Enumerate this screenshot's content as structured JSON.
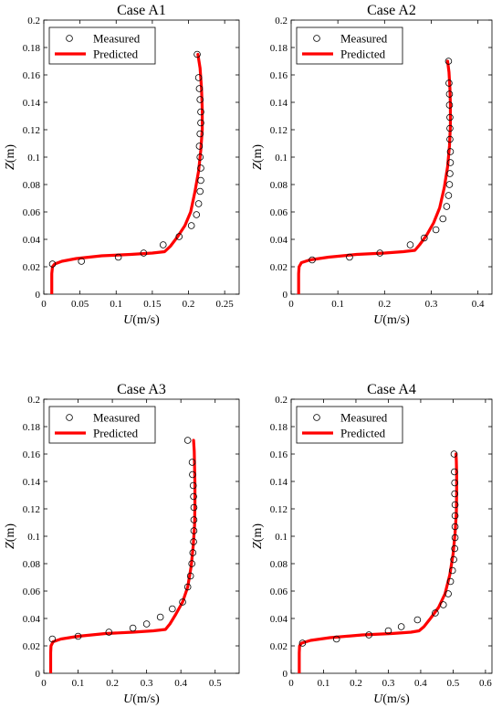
{
  "chart_data": [
    {
      "type": "line",
      "title": "Case A1",
      "xlabel_var": "U",
      "xlabel_unit": "(m/s)",
      "ylabel_var": "Z",
      "ylabel_unit": "(m)",
      "xlim": [
        0,
        0.27
      ],
      "ylim": [
        0,
        0.2
      ],
      "xticks": [
        0,
        0.05,
        0.1,
        0.15,
        0.2,
        0.25
      ],
      "xtick_labels": [
        "0",
        "0.05",
        "0.1",
        "0.15",
        "0.2",
        "0.25"
      ],
      "yticks": [
        0,
        0.02,
        0.04,
        0.06,
        0.08,
        0.1,
        0.12,
        0.14,
        0.16,
        0.18,
        0.2
      ],
      "ytick_labels": [
        "0",
        "0.02",
        "0.04",
        "0.06",
        "0.08",
        "0.1",
        "0.12",
        "0.14",
        "0.16",
        "0.18",
        "0.2"
      ],
      "legend": "top-left",
      "grid": false,
      "series": [
        {
          "name": "Measured",
          "kind": "marker",
          "color": "#000000",
          "x": [
            0.012,
            0.052,
            0.103,
            0.138,
            0.165,
            0.187,
            0.204,
            0.211,
            0.214,
            0.216,
            0.217,
            0.217,
            0.216,
            0.215,
            0.216,
            0.217,
            0.217,
            0.216,
            0.215,
            0.214,
            0.212
          ],
          "y": [
            0.022,
            0.024,
            0.027,
            0.03,
            0.036,
            0.042,
            0.05,
            0.058,
            0.066,
            0.075,
            0.083,
            0.092,
            0.1,
            0.108,
            0.117,
            0.125,
            0.133,
            0.142,
            0.15,
            0.158,
            0.175
          ]
        },
        {
          "name": "Predicted",
          "kind": "line",
          "color": "#ff0000",
          "x": [
            0.011,
            0.011,
            0.012,
            0.015,
            0.025,
            0.045,
            0.08,
            0.12,
            0.15,
            0.167,
            0.175,
            0.185,
            0.195,
            0.203,
            0.209,
            0.214,
            0.217,
            0.219,
            0.219,
            0.218,
            0.216,
            0.213
          ],
          "y": [
            0.0,
            0.015,
            0.02,
            0.022,
            0.024,
            0.026,
            0.028,
            0.029,
            0.03,
            0.031,
            0.035,
            0.042,
            0.05,
            0.06,
            0.075,
            0.09,
            0.105,
            0.12,
            0.135,
            0.15,
            0.165,
            0.175
          ]
        }
      ]
    },
    {
      "type": "line",
      "title": "Case A2",
      "xlabel_var": "U",
      "xlabel_unit": "(m/s)",
      "ylabel_var": "Z",
      "ylabel_unit": "(m)",
      "xlim": [
        0,
        0.43
      ],
      "ylim": [
        0,
        0.2
      ],
      "xticks": [
        0,
        0.1,
        0.2,
        0.3,
        0.4
      ],
      "xtick_labels": [
        "0",
        "0.1",
        "0.2",
        "0.3",
        "0.4"
      ],
      "yticks": [
        0,
        0.02,
        0.04,
        0.06,
        0.08,
        0.1,
        0.12,
        0.14,
        0.16,
        0.18,
        0.2
      ],
      "ytick_labels": [
        "0",
        "0.02",
        "0.04",
        "0.06",
        "0.08",
        "0.1",
        "0.12",
        "0.14",
        "0.16",
        "0.18",
        "0.2"
      ],
      "legend": "top-left",
      "grid": false,
      "series": [
        {
          "name": "Measured",
          "kind": "marker",
          "color": "#000000",
          "x": [
            0.045,
            0.125,
            0.19,
            0.255,
            0.285,
            0.31,
            0.325,
            0.333,
            0.337,
            0.339,
            0.34,
            0.341,
            0.341,
            0.34,
            0.34,
            0.34,
            0.339,
            0.339,
            0.338,
            0.337
          ],
          "y": [
            0.025,
            0.027,
            0.03,
            0.036,
            0.041,
            0.047,
            0.055,
            0.064,
            0.072,
            0.08,
            0.088,
            0.096,
            0.104,
            0.113,
            0.121,
            0.129,
            0.138,
            0.146,
            0.154,
            0.17
          ]
        },
        {
          "name": "Predicted",
          "kind": "line",
          "color": "#ff0000",
          "x": [
            0.016,
            0.016,
            0.017,
            0.022,
            0.04,
            0.08,
            0.14,
            0.2,
            0.24,
            0.265,
            0.275,
            0.29,
            0.305,
            0.318,
            0.328,
            0.335,
            0.339,
            0.341,
            0.341,
            0.34,
            0.338,
            0.335
          ],
          "y": [
            0.0,
            0.015,
            0.02,
            0.023,
            0.025,
            0.027,
            0.029,
            0.03,
            0.031,
            0.032,
            0.036,
            0.043,
            0.052,
            0.063,
            0.078,
            0.093,
            0.108,
            0.123,
            0.138,
            0.15,
            0.162,
            0.17
          ]
        }
      ]
    },
    {
      "type": "line",
      "title": "Case A3",
      "xlabel_var": "U",
      "xlabel_unit": "(m/s)",
      "ylabel_var": "Z",
      "ylabel_unit": "(m)",
      "xlim": [
        0,
        0.57
      ],
      "ylim": [
        0,
        0.2
      ],
      "xticks": [
        0,
        0.1,
        0.2,
        0.3,
        0.4,
        0.5
      ],
      "xtick_labels": [
        "0",
        "0.1",
        "0.2",
        "0.3",
        "0.4",
        "0.5"
      ],
      "yticks": [
        0,
        0.02,
        0.04,
        0.06,
        0.08,
        0.1,
        0.12,
        0.14,
        0.16,
        0.18,
        0.2
      ],
      "ytick_labels": [
        "0",
        "0.02",
        "0.04",
        "0.06",
        "0.08",
        "0.1",
        "0.12",
        "0.14",
        "0.16",
        "0.18",
        "0.2"
      ],
      "legend": "top-left",
      "grid": false,
      "series": [
        {
          "name": "Measured",
          "kind": "marker",
          "color": "#000000",
          "x": [
            0.025,
            0.1,
            0.19,
            0.26,
            0.3,
            0.34,
            0.375,
            0.405,
            0.42,
            0.428,
            0.432,
            0.435,
            0.437,
            0.438,
            0.438,
            0.438,
            0.437,
            0.436,
            0.434,
            0.433,
            0.42
          ],
          "y": [
            0.025,
            0.027,
            0.03,
            0.033,
            0.036,
            0.041,
            0.047,
            0.052,
            0.063,
            0.071,
            0.08,
            0.088,
            0.096,
            0.104,
            0.112,
            0.121,
            0.129,
            0.137,
            0.145,
            0.154,
            0.17
          ]
        },
        {
          "name": "Predicted",
          "kind": "line",
          "color": "#ff0000",
          "x": [
            0.02,
            0.02,
            0.021,
            0.027,
            0.05,
            0.1,
            0.18,
            0.26,
            0.32,
            0.355,
            0.368,
            0.385,
            0.405,
            0.42,
            0.43,
            0.436,
            0.44,
            0.441,
            0.441,
            0.44,
            0.439,
            0.437
          ],
          "y": [
            0.0,
            0.015,
            0.02,
            0.023,
            0.025,
            0.027,
            0.029,
            0.03,
            0.031,
            0.032,
            0.036,
            0.043,
            0.052,
            0.063,
            0.078,
            0.093,
            0.108,
            0.123,
            0.138,
            0.15,
            0.162,
            0.17
          ]
        }
      ]
    },
    {
      "type": "line",
      "title": "Case A4",
      "xlabel_var": "U",
      "xlabel_unit": "(m/s)",
      "ylabel_var": "Z",
      "ylabel_unit": "(m)",
      "xlim": [
        0,
        0.62
      ],
      "ylim": [
        0,
        0.2
      ],
      "xticks": [
        0,
        0.1,
        0.2,
        0.3,
        0.4,
        0.5,
        0.6
      ],
      "xtick_labels": [
        "0",
        "0.1",
        "0.2",
        "0.3",
        "0.4",
        "0.5",
        "0.6"
      ],
      "yticks": [
        0,
        0.02,
        0.04,
        0.06,
        0.08,
        0.1,
        0.12,
        0.14,
        0.16,
        0.18,
        0.2
      ],
      "ytick_labels": [
        "0",
        "0.02",
        "0.04",
        "0.06",
        "0.08",
        "0.1",
        "0.12",
        "0.14",
        "0.16",
        "0.18",
        "0.2"
      ],
      "legend": "top-left",
      "grid": false,
      "series": [
        {
          "name": "Measured",
          "kind": "marker",
          "color": "#000000",
          "x": [
            0.035,
            0.14,
            0.24,
            0.3,
            0.34,
            0.39,
            0.445,
            0.47,
            0.485,
            0.492,
            0.498,
            0.502,
            0.505,
            0.506,
            0.506,
            0.506,
            0.506,
            0.505,
            0.505,
            0.504,
            0.503
          ],
          "y": [
            0.022,
            0.025,
            0.028,
            0.031,
            0.034,
            0.039,
            0.044,
            0.05,
            0.058,
            0.067,
            0.075,
            0.083,
            0.091,
            0.099,
            0.107,
            0.115,
            0.123,
            0.131,
            0.139,
            0.147,
            0.16
          ]
        },
        {
          "name": "Predicted",
          "kind": "line",
          "color": "#ff0000",
          "x": [
            0.025,
            0.025,
            0.026,
            0.032,
            0.06,
            0.12,
            0.22,
            0.31,
            0.37,
            0.395,
            0.41,
            0.43,
            0.455,
            0.475,
            0.49,
            0.5,
            0.506,
            0.51,
            0.511,
            0.511,
            0.51,
            0.509
          ],
          "y": [
            0.0,
            0.015,
            0.02,
            0.022,
            0.024,
            0.026,
            0.028,
            0.029,
            0.03,
            0.031,
            0.034,
            0.04,
            0.048,
            0.058,
            0.072,
            0.087,
            0.102,
            0.117,
            0.132,
            0.145,
            0.155,
            0.16
          ]
        }
      ]
    }
  ]
}
